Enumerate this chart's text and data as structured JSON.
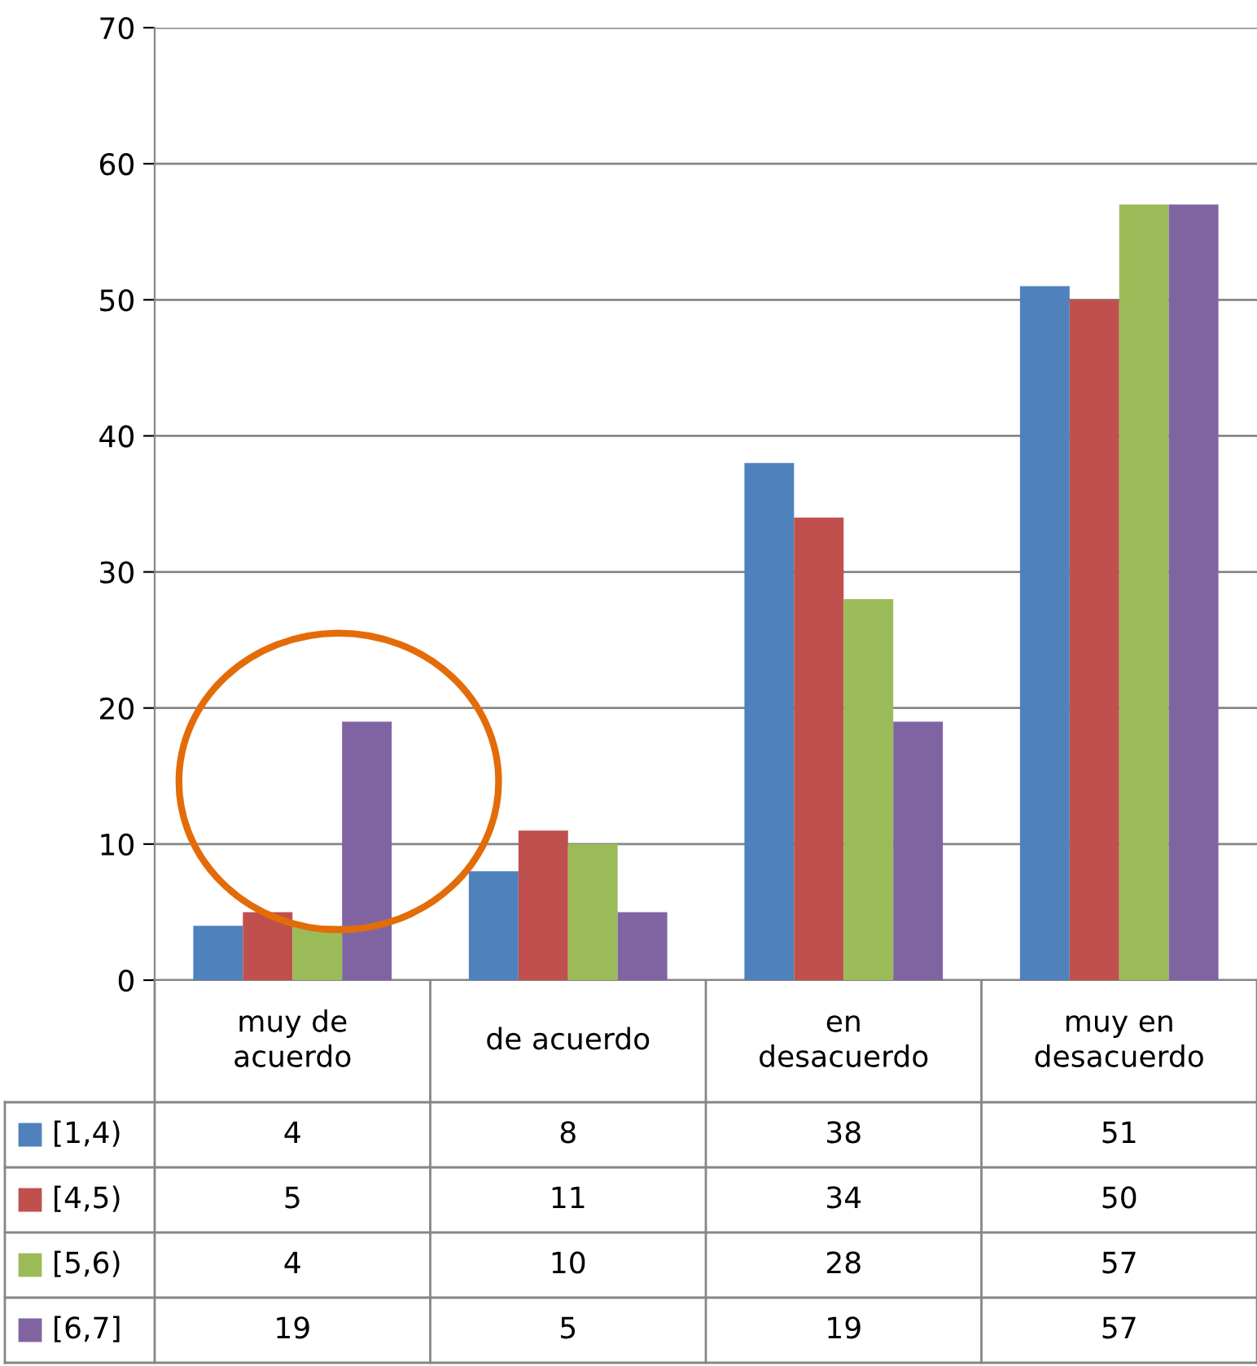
{
  "chart_data": {
    "type": "bar",
    "categories": [
      "muy de acuerdo",
      "de acuerdo",
      "en desacuerdo",
      "muy en desacuerdo"
    ],
    "series": [
      {
        "name": "[1,4)",
        "color": "#4f81bd",
        "values": [
          4,
          8,
          38,
          51
        ]
      },
      {
        "name": "[4,5)",
        "color": "#c0504d",
        "values": [
          5,
          11,
          34,
          50
        ]
      },
      {
        "name": "[5,6)",
        "color": "#9bbb59",
        "values": [
          4,
          10,
          28,
          57
        ]
      },
      {
        "name": "[6,7]",
        "color": "#8064a2",
        "values": [
          19,
          5,
          19,
          57
        ]
      }
    ],
    "ylim": [
      0,
      70
    ],
    "yticks": [
      0,
      10,
      20,
      30,
      40,
      50,
      60,
      70
    ],
    "grid": "y",
    "legend": "bottom",
    "data_labels": true
  }
}
